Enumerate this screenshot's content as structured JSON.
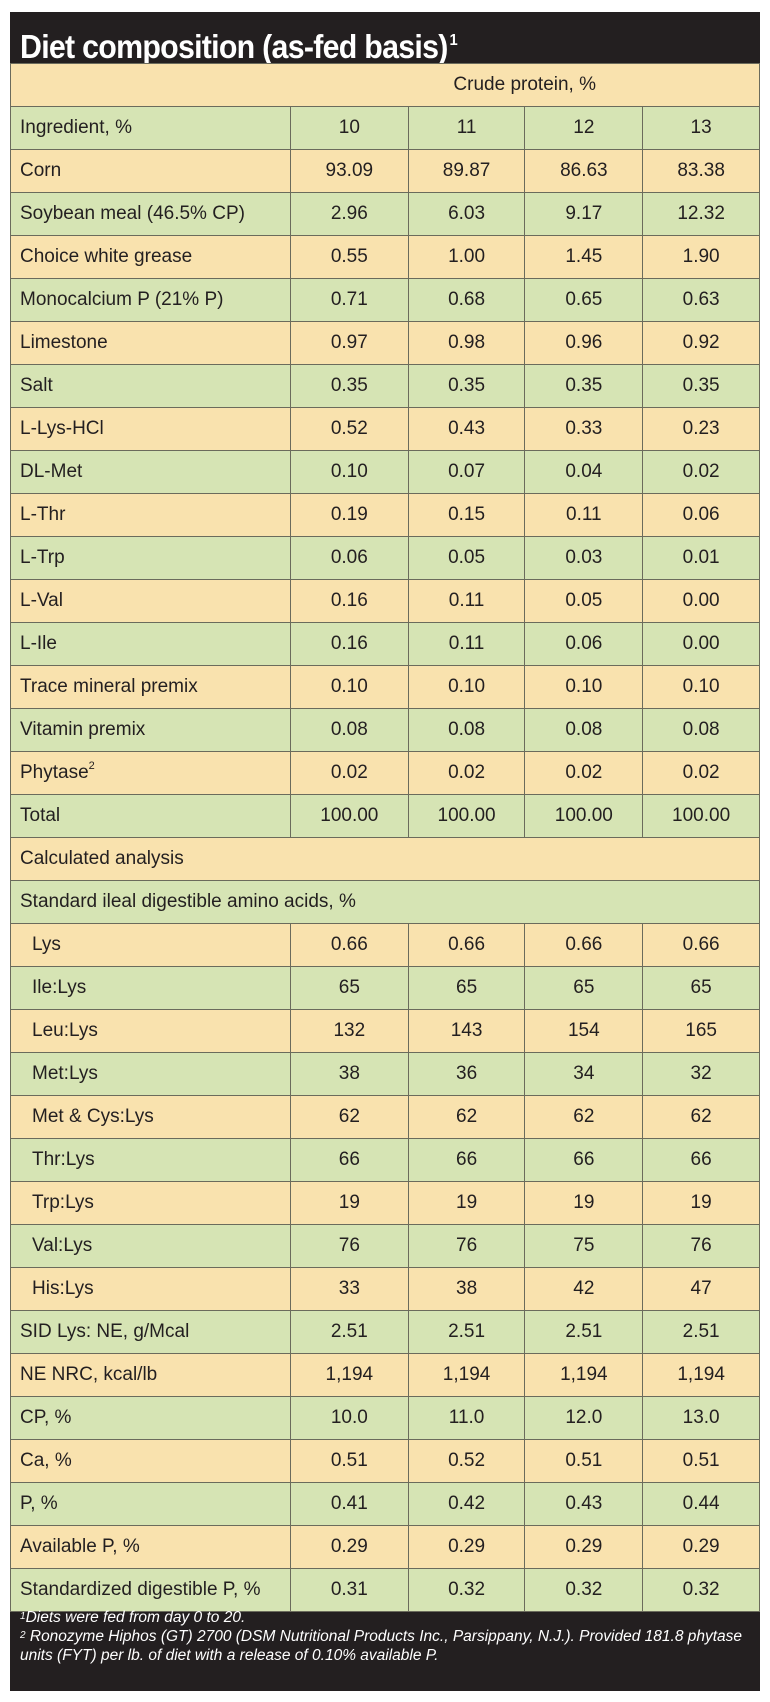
{
  "title": "Diet composition (as-fed basis)",
  "title_sup": "1",
  "header": {
    "group_label": "Crude protein, %",
    "ingredient_label": "Ingredient, %",
    "columns": [
      "10",
      "11",
      "12",
      "13"
    ]
  },
  "ingredients": [
    {
      "label": "Corn",
      "values": [
        "93.09",
        "89.87",
        "86.63",
        "83.38"
      ]
    },
    {
      "label": "Soybean meal (46.5% CP)",
      "values": [
        "2.96",
        "6.03",
        "9.17",
        "12.32"
      ]
    },
    {
      "label": "Choice white grease",
      "values": [
        "0.55",
        "1.00",
        "1.45",
        "1.90"
      ]
    },
    {
      "label": "Monocalcium P (21% P)",
      "values": [
        "0.71",
        "0.68",
        "0.65",
        "0.63"
      ]
    },
    {
      "label": "Limestone",
      "values": [
        "0.97",
        "0.98",
        "0.96",
        "0.92"
      ]
    },
    {
      "label": "Salt",
      "values": [
        "0.35",
        "0.35",
        "0.35",
        "0.35"
      ]
    },
    {
      "label": "L-Lys-HCl",
      "values": [
        "0.52",
        "0.43",
        "0.33",
        "0.23"
      ]
    },
    {
      "label": "DL-Met",
      "values": [
        "0.10",
        "0.07",
        "0.04",
        "0.02"
      ]
    },
    {
      "label": "L-Thr",
      "values": [
        "0.19",
        "0.15",
        "0.11",
        "0.06"
      ]
    },
    {
      "label": "L-Trp",
      "values": [
        "0.06",
        "0.05",
        "0.03",
        "0.01"
      ]
    },
    {
      "label": "L-Val",
      "values": [
        "0.16",
        "0.11",
        "0.05",
        "0.00"
      ]
    },
    {
      "label": "L-Ile",
      "values": [
        "0.16",
        "0.11",
        "0.06",
        "0.00"
      ]
    },
    {
      "label": "Trace mineral premix",
      "values": [
        "0.10",
        "0.10",
        "0.10",
        "0.10"
      ]
    },
    {
      "label": "Vitamin premix",
      "values": [
        "0.08",
        "0.08",
        "0.08",
        "0.08"
      ]
    },
    {
      "label": "Phytase",
      "sup": "2",
      "values": [
        "0.02",
        "0.02",
        "0.02",
        "0.02"
      ]
    },
    {
      "label": "Total",
      "values": [
        "100.00",
        "100.00",
        "100.00",
        "100.00"
      ]
    }
  ],
  "calculated_label": "Calculated analysis",
  "sid_label": "Standard ileal digestible amino acids, %",
  "amino_acids": [
    {
      "label": "Lys",
      "values": [
        "0.66",
        "0.66",
        "0.66",
        "0.66"
      ]
    },
    {
      "label": "Ile:Lys",
      "values": [
        "65",
        "65",
        "65",
        "65"
      ]
    },
    {
      "label": "Leu:Lys",
      "values": [
        "132",
        "143",
        "154",
        "165"
      ]
    },
    {
      "label": "Met:Lys",
      "values": [
        "38",
        "36",
        "34",
        "32"
      ]
    },
    {
      "label": "Met & Cys:Lys",
      "values": [
        "62",
        "62",
        "62",
        "62"
      ]
    },
    {
      "label": "Thr:Lys",
      "values": [
        "66",
        "66",
        "66",
        "66"
      ]
    },
    {
      "label": "Trp:Lys",
      "values": [
        "19",
        "19",
        "19",
        "19"
      ]
    },
    {
      "label": "Val:Lys",
      "values": [
        "76",
        "76",
        "75",
        "76"
      ]
    },
    {
      "label": "His:Lys",
      "values": [
        "33",
        "38",
        "42",
        "47"
      ]
    }
  ],
  "analysis": [
    {
      "label": "SID Lys: NE, g/Mcal",
      "values": [
        "2.51",
        "2.51",
        "2.51",
        "2.51"
      ]
    },
    {
      "label": "NE NRC, kcal/lb",
      "values": [
        "1,194",
        "1,194",
        "1,194",
        "1,194"
      ]
    },
    {
      "label": "CP, %",
      "values": [
        "10.0",
        "11.0",
        "12.0",
        "13.0"
      ]
    },
    {
      "label": "Ca, %",
      "values": [
        "0.51",
        "0.52",
        "0.51",
        "0.51"
      ]
    },
    {
      "label": "P, %",
      "values": [
        "0.41",
        "0.42",
        "0.43",
        "0.44"
      ]
    },
    {
      "label": "Available P, %",
      "values": [
        "0.29",
        "0.29",
        "0.29",
        "0.29"
      ]
    },
    {
      "label": "Standardized digestible P, %",
      "values": [
        "0.31",
        "0.32",
        "0.32",
        "0.32"
      ]
    }
  ],
  "footnotes": [
    {
      "sup": "1",
      "text": "Diets were fed from day 0 to 20."
    },
    {
      "sup": "2",
      "text": " Ronozyme Hiphos (GT) 2700 (DSM Nutritional Products Inc., Parsippany, N.J.). Provided 181.8 phytase units (FYT) per lb. of diet with a release of 0.10% available P."
    }
  ]
}
